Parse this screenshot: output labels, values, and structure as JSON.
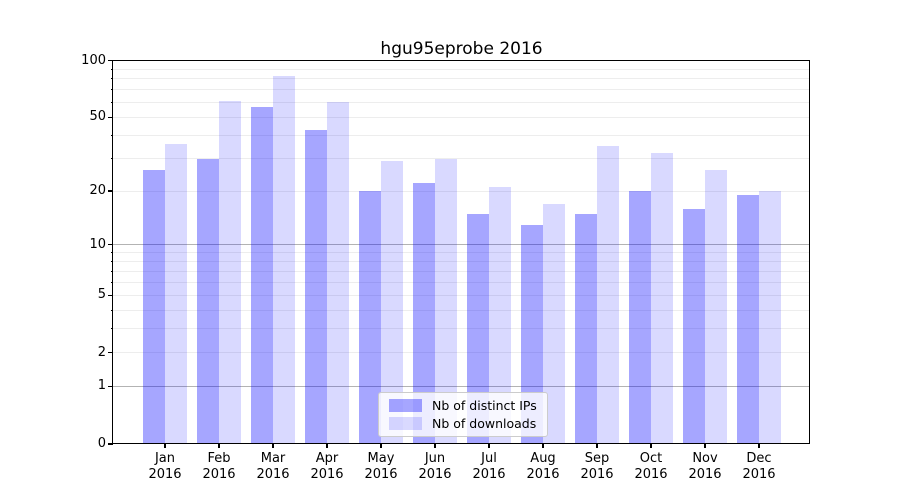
{
  "title": "hgu95eprobe 2016",
  "colors": {
    "ips_bar": "rgba(0,0,255,0.35)",
    "ips_bar_hex": "#a6a6ff",
    "downloads_bar": "rgba(0,0,255,0.15)",
    "downloads_bar_hex": "#d9d9ff",
    "grid_major": "#b3b3b3",
    "grid_minor": "#ededed",
    "axis": "#000000",
    "background": "#ffffff"
  },
  "legend": {
    "items": [
      {
        "label": "Nb of distinct IPs",
        "color": "rgba(0,0,255,0.35)"
      },
      {
        "label": "Nb of downloads",
        "color": "rgba(0,0,255,0.15)"
      }
    ]
  },
  "chart_data": {
    "type": "bar",
    "title": "hgu95eprobe 2016",
    "categories": [
      "Jan",
      "Feb",
      "Mar",
      "Apr",
      "May",
      "Jun",
      "Jul",
      "Aug",
      "Sep",
      "Oct",
      "Nov",
      "Dec"
    ],
    "year": "2016",
    "series": [
      {
        "name": "Nb of distinct IPs",
        "values": [
          26,
          30,
          57,
          43,
          20,
          22,
          15,
          13,
          15,
          20,
          16,
          19
        ]
      },
      {
        "name": "Nb of downloads",
        "values": [
          36,
          61,
          83,
          60,
          29,
          30,
          21,
          17,
          35,
          32,
          26,
          20
        ]
      }
    ],
    "xlabel": "",
    "ylabel": "",
    "yscale": "log1p",
    "ylim": [
      0,
      100
    ],
    "ytick_values": [
      0,
      1,
      2,
      5,
      10,
      20,
      50,
      100
    ],
    "ytick_labels": [
      "0",
      "1",
      "2",
      "5",
      "10",
      "20",
      "50",
      "100"
    ],
    "major_gridlines": [
      1,
      10
    ],
    "minor_gridlines": [
      2,
      3,
      4,
      5,
      6,
      7,
      8,
      9,
      20,
      30,
      40,
      50,
      60,
      70,
      80,
      90
    ],
    "grid": true,
    "legend_position": "lower center"
  }
}
